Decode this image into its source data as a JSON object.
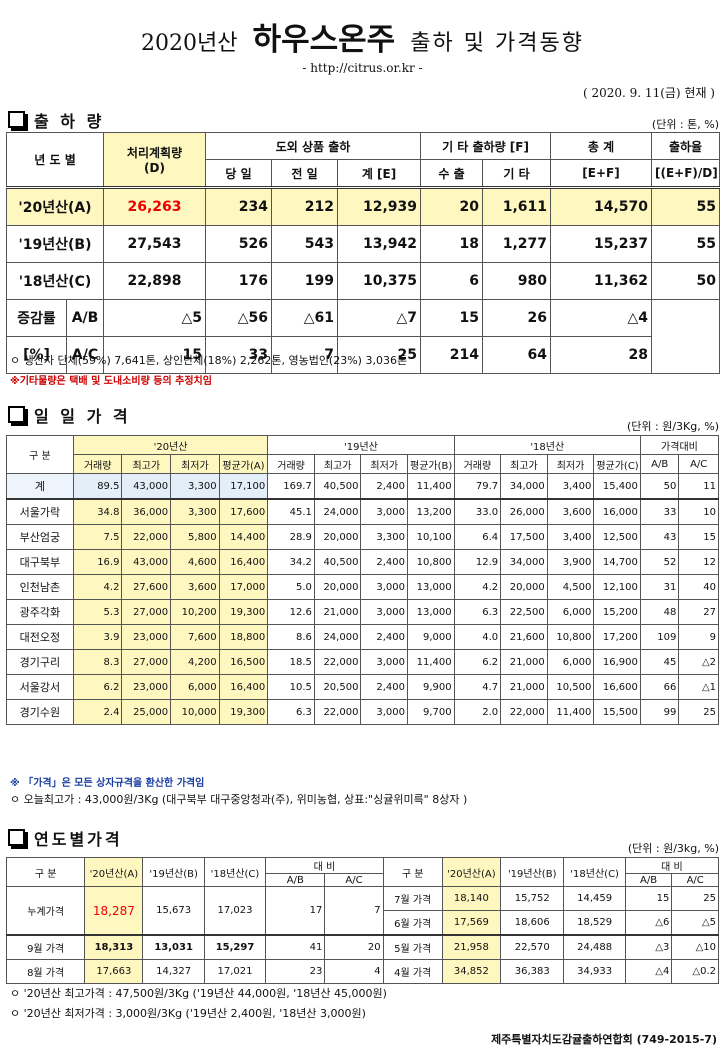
{
  "header": {
    "year_label": "2020년산",
    "product": "하우스온주",
    "subtitle": "출하 및 가격동향",
    "url": "- http://citrus.or.kr -",
    "date": "( 2020. 9. 11(금) 현재 )"
  },
  "shipment": {
    "title": "출 하 량",
    "unit": "(단위 : 톤, %)",
    "headers": {
      "year": "년 도 별",
      "processing": "처리계획량",
      "processing_sub": "(D)",
      "domestic": "도외 상품 출하",
      "today": "당 일",
      "prev": "전 일",
      "sum": "계 [E]",
      "other": "기 타 출하량 [F]",
      "export": "수 출",
      "etc": "기 타",
      "total": "총   계",
      "total_sub": "[E+F]",
      "rate": "출하율",
      "rate_sub": "[(E+F)/D]"
    },
    "rows": [
      {
        "year": "'20년산(A)",
        "plan": "26,263",
        "today": "234",
        "prev": "212",
        "sum": "12,939",
        "export": "20",
        "etc": "1,611",
        "total": "14,570",
        "rate": "55"
      },
      {
        "year": "'19년산(B)",
        "plan": "27,543",
        "today": "526",
        "prev": "543",
        "sum": "13,942",
        "export": "18",
        "etc": "1,277",
        "total": "15,237",
        "rate": "55"
      },
      {
        "year": "'18년산(C)",
        "plan": "22,898",
        "today": "176",
        "prev": "199",
        "sum": "10,375",
        "export": "6",
        "etc": "980",
        "total": "11,362",
        "rate": "50"
      }
    ],
    "change": {
      "label1": "증감률",
      "label2": "[%]",
      "ab": {
        "label": "A/B",
        "plan": "△5",
        "today": "△56",
        "prev": "△61",
        "sum": "△7",
        "export": "15",
        "etc": "26",
        "total": "△4"
      },
      "ac": {
        "label": "A/C",
        "plan": "15",
        "today": "33",
        "prev": "7",
        "sum": "25",
        "export": "214",
        "etc": "64",
        "total": "28"
      }
    },
    "note1": "ㅇ 생산자 단체(59%) 7,641톤,   상인단체(18%) 2,262톤,   영농법인(23%) 3,036톤",
    "note2": "※기타물량은 택배 및 도내소비량 등의 추정치임"
  },
  "daily": {
    "title": "일 일 가 격",
    "unit": "(단위 : 원/3Kg, %)",
    "headers": {
      "gubun": "구   분",
      "y20": "'20년산",
      "y19": "'19년산",
      "y18": "'18년산",
      "ratio": "가격대비",
      "qty": "거래량",
      "high": "최고가",
      "low": "최저가",
      "avgA": "평균가(A)",
      "avgB": "평균가(B)",
      "avgC": "평균가(C)",
      "ab": "A/B",
      "ac": "A/C"
    },
    "rows": [
      {
        "name": "계",
        "v": [
          "89.5",
          "43,000",
          "3,300",
          "17,100",
          "169.7",
          "40,500",
          "2,400",
          "11,400",
          "79.7",
          "34,000",
          "3,400",
          "15,400",
          "50",
          "11"
        ]
      },
      {
        "name": "서울가락",
        "v": [
          "34.8",
          "36,000",
          "3,300",
          "17,600",
          "45.1",
          "24,000",
          "3,000",
          "13,200",
          "33.0",
          "26,000",
          "3,600",
          "16,000",
          "33",
          "10"
        ]
      },
      {
        "name": "부산엄궁",
        "v": [
          "7.5",
          "22,000",
          "5,800",
          "14,400",
          "28.9",
          "20,000",
          "3,300",
          "10,100",
          "6.4",
          "17,500",
          "3,400",
          "12,500",
          "43",
          "15"
        ]
      },
      {
        "name": "대구북부",
        "v": [
          "16.9",
          "43,000",
          "4,600",
          "16,400",
          "34.2",
          "40,500",
          "2,400",
          "10,800",
          "12.9",
          "34,000",
          "3,900",
          "14,700",
          "52",
          "12"
        ]
      },
      {
        "name": "인천남촌",
        "v": [
          "4.2",
          "27,600",
          "3,600",
          "17,000",
          "5.0",
          "20,000",
          "3,000",
          "13,000",
          "4.2",
          "20,000",
          "4,500",
          "12,100",
          "31",
          "40"
        ]
      },
      {
        "name": "광주각화",
        "v": [
          "5.3",
          "27,000",
          "10,200",
          "19,300",
          "12.6",
          "21,000",
          "3,000",
          "13,000",
          "6.3",
          "22,500",
          "6,000",
          "15,200",
          "48",
          "27"
        ]
      },
      {
        "name": "대전오정",
        "v": [
          "3.9",
          "23,000",
          "7,600",
          "18,800",
          "8.6",
          "24,000",
          "2,400",
          "9,000",
          "4.0",
          "21,600",
          "10,800",
          "17,200",
          "109",
          "9"
        ]
      },
      {
        "name": "경기구리",
        "v": [
          "8.3",
          "27,000",
          "4,200",
          "16,500",
          "18.5",
          "22,000",
          "3,000",
          "11,400",
          "6.2",
          "21,000",
          "6,000",
          "16,900",
          "45",
          "△2"
        ]
      },
      {
        "name": "서울강서",
        "v": [
          "6.2",
          "23,000",
          "6,000",
          "16,400",
          "10.5",
          "20,500",
          "2,400",
          "9,900",
          "4.7",
          "21,000",
          "10,500",
          "16,600",
          "66",
          "△1"
        ]
      },
      {
        "name": "경기수원",
        "v": [
          "2.4",
          "25,000",
          "10,000",
          "19,300",
          "6.3",
          "22,000",
          "3,000",
          "9,700",
          "2.0",
          "22,000",
          "11,400",
          "15,500",
          "99",
          "25"
        ]
      }
    ],
    "note1": "※ 「가격」은 모든 상자규격을 환산한 가격임",
    "note2": "ㅇ 오늘최고가 :  43,000원/3Kg (대구북부  대구중앙청과(주),   위미농협,  상표:\"싱귤위미륵\"  8상자 )"
  },
  "yearly": {
    "title": "연도별가격",
    "unit": "(단위 : 원/3kg, %)",
    "headers": {
      "gubun": "구   분",
      "y20": "'20년산(A)",
      "y19": "'19년산(B)",
      "y18": "'18년산(C)",
      "daebi": "대   비",
      "ab": "A/B",
      "ac": "A/C"
    },
    "left_rows": [
      {
        "name": "누계가격",
        "v": [
          "18,287",
          "15,673",
          "17,023",
          "17",
          "7"
        ]
      },
      {
        "name": "9월 가격",
        "v": [
          "18,313",
          "13,031",
          "15,297",
          "41",
          "20"
        ]
      },
      {
        "name": "8월 가격",
        "v": [
          "17,663",
          "14,327",
          "17,021",
          "23",
          "4"
        ]
      }
    ],
    "right_rows": [
      {
        "name": "7월 가격",
        "v": [
          "18,140",
          "15,752",
          "14,459",
          "15",
          "25"
        ]
      },
      {
        "name": "6월 가격",
        "v": [
          "17,569",
          "18,606",
          "18,529",
          "△6",
          "△5"
        ]
      },
      {
        "name": "5월 가격",
        "v": [
          "21,958",
          "22,570",
          "24,488",
          "△3",
          "△10"
        ]
      },
      {
        "name": "4월 가격",
        "v": [
          "34,852",
          "36,383",
          "34,933",
          "△4",
          "△0.2"
        ]
      }
    ],
    "note1": "ㅇ '20년산 최고가격 : 47,500원/3Kg ('19년산 44,000원, '18년산 45,000원)",
    "note2": "ㅇ '20년산 최저가격 :  3,000원/3Kg ('19년산  2,400원, '18년산 3,000원)"
  },
  "footer": "제주특별자치도감귤출하연합회 (749-2015-7)"
}
